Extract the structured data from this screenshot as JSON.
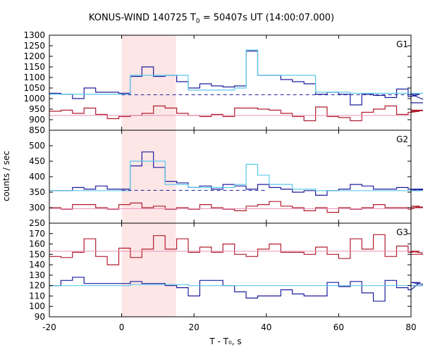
{
  "title": {
    "prefix": "KONUS-WIND 140725 T",
    "sub": "0",
    "suffix": " = 50407s UT (14:00:07.000)"
  },
  "xlabel": "T - T₀, s",
  "ylabel": "counts / sec",
  "colors": {
    "observed": "#1c1c9c",
    "model": "#5ac8ec",
    "softband": "#b01c2c",
    "softmodel": "#e890b8",
    "shade": "#fde6e6",
    "background_line": "#1c1c9c"
  },
  "chart_data": {
    "type": "line",
    "layout": "stacked panels",
    "x_ticks": [
      -20,
      0,
      20,
      40,
      60,
      80
    ],
    "xlim": [
      -20,
      80
    ],
    "highlight_interval": [
      0,
      15
    ],
    "bin_width": 3.2,
    "bin_start": -20,
    "panels": [
      {
        "label": "G1",
        "ylim": [
          850,
          1300
        ],
        "y_ticks": [
          850,
          900,
          950,
          1000,
          1050,
          1100,
          1150,
          1200,
          1250,
          1300
        ],
        "series": [
          {
            "role": "observed",
            "step": true,
            "values": [
              1025,
              1020,
              1000,
              1050,
              1030,
              1030,
              1025,
              1105,
              1150,
              1105,
              1110,
              1080,
              1050,
              1070,
              1060,
              1055,
              1060,
              1225,
              1110,
              1110,
              1090,
              1080,
              1070,
              1020,
              1030,
              1020,
              970,
              1020,
              1015,
              1005,
              1045,
              1010,
              1020,
              980
            ]
          },
          {
            "role": "model",
            "step": true,
            "values": [
              1020,
              1020,
              1020,
              1020,
              1020,
              1020,
              1020,
              1110,
              1110,
              1110,
              1110,
              1110,
              1040,
              1040,
              1040,
              1040,
              1050,
              1230,
              1110,
              1110,
              1110,
              1110,
              1110,
              1030,
              1030,
              1030,
              1025,
              1025,
              1025,
              1025,
              1025,
              1025,
              1025,
              1025
            ]
          },
          {
            "role": "background",
            "dashed": true,
            "y": 1018,
            "x_range": [
              0,
              80
            ]
          },
          {
            "role": "softband",
            "step": true,
            "values": [
              940,
              945,
              930,
              955,
              925,
              905,
              915,
              920,
              930,
              965,
              955,
              930,
              920,
              915,
              925,
              915,
              955,
              955,
              950,
              945,
              930,
              915,
              895,
              960,
              915,
              910,
              895,
              935,
              950,
              965,
              925,
              935,
              940,
              945
            ]
          },
          {
            "role": "softmodel",
            "y": 920
          }
        ]
      },
      {
        "label": "G2",
        "ylim": [
          250,
          550
        ],
        "y_ticks": [
          250,
          300,
          350,
          400,
          450,
          500
        ],
        "series": [
          {
            "role": "observed",
            "step": true,
            "values": [
              355,
              355,
              365,
              360,
              370,
              360,
              360,
              435,
              480,
              430,
              385,
              380,
              365,
              370,
              360,
              375,
              370,
              360,
              375,
              365,
              360,
              350,
              355,
              340,
              355,
              360,
              375,
              370,
              360,
              360,
              365,
              360,
              355,
              360
            ]
          },
          {
            "role": "model",
            "step": true,
            "values": [
              355,
              355,
              355,
              355,
              355,
              355,
              355,
              450,
              450,
              450,
              375,
              375,
              365,
              365,
              365,
              365,
              375,
              440,
              405,
              375,
              375,
              360,
              360,
              355,
              355,
              355,
              355,
              355,
              355,
              355,
              355,
              355,
              355,
              355
            ]
          },
          {
            "role": "background",
            "dashed": true,
            "y": 356,
            "x_range": [
              0,
              40
            ]
          },
          {
            "role": "softband",
            "step": true,
            "values": [
              300,
              295,
              310,
              310,
              300,
              295,
              310,
              315,
              300,
              305,
              295,
              300,
              295,
              310,
              300,
              295,
              290,
              305,
              310,
              320,
              305,
              300,
              290,
              300,
              285,
              300,
              295,
              300,
              310,
              300,
              300,
              295,
              305,
              300
            ]
          },
          {
            "role": "softmodel",
            "y": 297
          }
        ]
      },
      {
        "label": "G3",
        "ylim": [
          90,
          180
        ],
        "y_ticks": [
          90,
          100,
          110,
          120,
          130,
          140,
          150,
          160,
          170
        ],
        "series": [
          {
            "role": "observed",
            "step": true,
            "values": [
              120,
              125,
              128,
              122,
              122,
              122,
              122,
              124,
              122,
              122,
              120,
              118,
              110,
              125,
              125,
              120,
              114,
              108,
              110,
              110,
              116,
              112,
              110,
              110,
              123,
              119,
              124,
              113,
              105,
              125,
              118,
              116,
              123,
              120
            ]
          },
          {
            "role": "model",
            "step": true,
            "values": [
              120,
              120,
              120,
              120,
              120,
              120,
              120,
              121,
              121,
              121,
              121,
              121,
              120,
              120,
              120,
              120,
              120,
              120,
              120,
              120,
              120,
              120,
              120,
              120,
              120,
              120,
              120,
              120,
              120,
              120,
              120,
              120,
              120,
              120
            ]
          },
          {
            "role": "softband",
            "step": true,
            "values": [
              148,
              147,
              152,
              165,
              148,
              140,
              156,
              147,
              155,
              168,
              155,
              165,
              152,
              157,
              152,
              160,
              150,
              148,
              155,
              160,
              152,
              152,
              150,
              157,
              150,
              146,
              165,
              155,
              169,
              148,
              158,
              152,
              153,
              150
            ]
          },
          {
            "role": "softmodel",
            "y": 153
          }
        ]
      }
    ]
  }
}
